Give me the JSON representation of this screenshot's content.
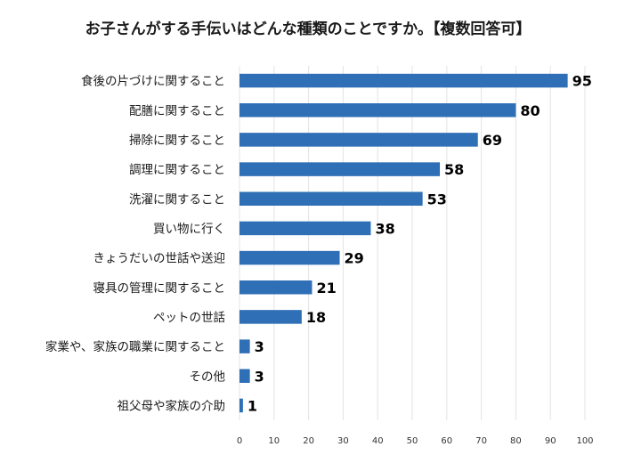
{
  "chart_data": {
    "type": "bar",
    "orientation": "horizontal",
    "title": "お子さんがする手伝いはどんな種類のことですか。【複数回答可】",
    "categories": [
      "食後の片づけに関すること",
      "配膳に関すること",
      "掃除に関すること",
      "調理に関すること",
      "洗濯に関すること",
      "買い物に行く",
      "きょうだいの世話や送迎",
      "寝具の管理に関すること",
      "ペットの世話",
      "家業や、家族の職業に関すること",
      "その他",
      "祖父母や家族の介助"
    ],
    "values": [
      95,
      80,
      69,
      58,
      53,
      38,
      29,
      21,
      18,
      3,
      3,
      1
    ],
    "xlim": [
      0,
      100
    ],
    "xticks": [
      0,
      10,
      20,
      30,
      40,
      50,
      60,
      70,
      80,
      90,
      100
    ],
    "grid": "vertical",
    "bar_color": "#2e6fb5",
    "xlabel": "",
    "ylabel": ""
  }
}
